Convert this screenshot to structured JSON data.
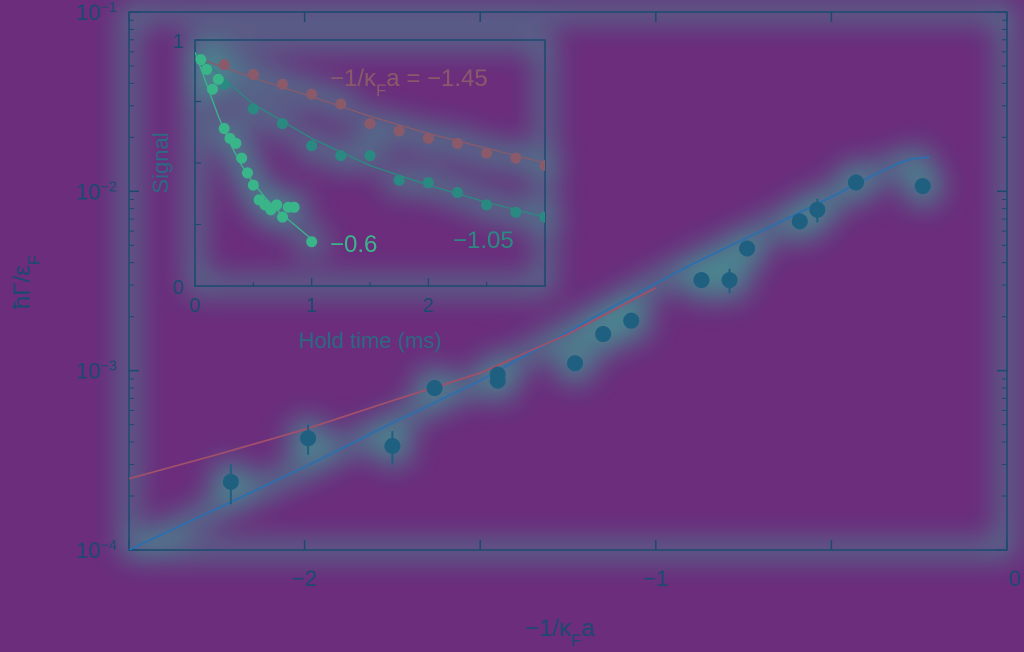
{
  "colors": {
    "background": "#6b2d7c",
    "glow": "#2fd3a0",
    "axis": "#1a4a6e",
    "blue_curve": "#2a6fb0",
    "red_curve": "#a0506a",
    "point_main": "#1f5f7f",
    "inset_brown": "#8a5a6a",
    "inset_teal": "#2a8a82",
    "inset_green": "#3ab58a"
  },
  "chart_data": [
    {
      "id": "main",
      "type": "scatter",
      "xlabel": "−1/κ_Fa",
      "xlabel_parts": {
        "pre": "−1/κ",
        "sub": "F",
        "post": "a"
      },
      "ylabel_parts": {
        "pre": "ħΓ/ε",
        "sub": "F"
      },
      "xlim": [
        -2.5,
        0
      ],
      "ylim": [
        0.0001,
        0.1
      ],
      "yscale": "log",
      "x_ticks": [
        {
          "value": -2,
          "label": "−2"
        },
        {
          "value": -1,
          "label": "−1"
        },
        {
          "value": 0,
          "label": "0"
        }
      ],
      "y_ticks": [
        {
          "value": 0.1,
          "base": "10",
          "exp": "−1"
        },
        {
          "value": 0.01,
          "base": "10",
          "exp": "−2"
        },
        {
          "value": 0.001,
          "base": "10",
          "exp": "−3"
        },
        {
          "value": 0.0001,
          "base": "10",
          "exp": "−4"
        }
      ],
      "points": [
        {
          "x": -2.21,
          "y": 0.00024,
          "err": 6e-05
        },
        {
          "x": -1.99,
          "y": 0.00042,
          "err": 8e-05
        },
        {
          "x": -1.75,
          "y": 0.00038,
          "err": 8e-05
        },
        {
          "x": -1.63,
          "y": 0.0008,
          "err": 6e-05
        },
        {
          "x": -1.45,
          "y": 0.00095,
          "err": 6e-05
        },
        {
          "x": -1.45,
          "y": 0.00088,
          "err": 5e-05
        },
        {
          "x": -1.23,
          "y": 0.0011,
          "err": 7e-05
        },
        {
          "x": -1.15,
          "y": 0.0016,
          "err": 0.0001
        },
        {
          "x": -1.07,
          "y": 0.0019,
          "err": 0.0001
        },
        {
          "x": -0.87,
          "y": 0.0032,
          "err": 0.0003
        },
        {
          "x": -0.79,
          "y": 0.0032,
          "err": 0.0005
        },
        {
          "x": -0.74,
          "y": 0.0048,
          "err": 0.0003
        },
        {
          "x": -0.59,
          "y": 0.0068,
          "err": 0.0004
        },
        {
          "x": -0.54,
          "y": 0.0079,
          "err": 0.0012
        },
        {
          "x": -0.43,
          "y": 0.0112,
          "err": 0.0008
        },
        {
          "x": -0.24,
          "y": 0.0107,
          "err": 0.001
        }
      ],
      "series": [
        {
          "color_key": "blue_curve",
          "x": [
            -2.5,
            -2.25,
            -2.0,
            -1.75,
            -1.5,
            -1.3,
            -1.1,
            -0.9,
            -0.7,
            -0.5,
            -0.38,
            -0.31,
            -0.27,
            -0.22
          ],
          "y": [
            0.0001,
            0.00017,
            0.00029,
            0.00051,
            0.00088,
            0.00145,
            0.0024,
            0.0039,
            0.006,
            0.0093,
            0.0123,
            0.0143,
            0.0152,
            0.0155
          ]
        },
        {
          "color_key": "red_curve",
          "x": [
            -2.5,
            -2.25,
            -2.0,
            -1.75,
            -1.5,
            -1.25,
            -1.0
          ],
          "y": [
            0.00025,
            0.00034,
            0.00047,
            0.00068,
            0.00097,
            0.0016,
            0.0029
          ]
        }
      ]
    },
    {
      "id": "inset",
      "type": "scatter",
      "xlabel": "Hold time (ms)",
      "ylabel": "Signal",
      "xlim": [
        0,
        3
      ],
      "ylim": [
        0,
        1
      ],
      "x_ticks": [
        {
          "value": 0,
          "label": "0"
        },
        {
          "value": 1,
          "label": "1"
        },
        {
          "value": 2,
          "label": "2"
        }
      ],
      "y_ticks": [
        {
          "value": 0,
          "label": "0"
        },
        {
          "value": 1,
          "label": "1"
        }
      ],
      "series": [
        {
          "label": "−1/κ_Fa = −1.45",
          "label_parts": {
            "pre": "−1/κ",
            "sub": "F",
            "post": "a = −1.45"
          },
          "color_key": "inset_brown",
          "points_x": [
            0.25,
            0.5,
            0.75,
            1.0,
            1.25,
            1.5,
            1.75,
            2.0,
            2.25,
            2.5,
            2.75,
            3.0
          ],
          "points_y": [
            0.9,
            0.86,
            0.82,
            0.78,
            0.74,
            0.66,
            0.63,
            0.6,
            0.58,
            0.54,
            0.52,
            0.49
          ],
          "fit_x": [
            0.0,
            0.3,
            0.6,
            1.0,
            1.5,
            2.0,
            2.5,
            3.0
          ],
          "fit_y": [
            0.93,
            0.88,
            0.83,
            0.77,
            0.69,
            0.62,
            0.56,
            0.5
          ]
        },
        {
          "label": "−1.05",
          "color_key": "inset_teal",
          "points_x": [
            0.1,
            0.25,
            0.5,
            0.75,
            1.0,
            1.25,
            1.5,
            1.75,
            2.0,
            2.25,
            2.5,
            2.75,
            3.0
          ],
          "points_y": [
            0.88,
            0.82,
            0.72,
            0.66,
            0.57,
            0.53,
            0.53,
            0.43,
            0.42,
            0.38,
            0.33,
            0.3,
            0.28
          ],
          "fit_x": [
            0.0,
            0.25,
            0.5,
            1.0,
            1.5,
            2.0,
            2.5,
            3.0
          ],
          "fit_y": [
            0.95,
            0.84,
            0.74,
            0.6,
            0.49,
            0.41,
            0.34,
            0.28
          ]
        },
        {
          "label": "−0.6",
          "color_key": "inset_green",
          "points_x": [
            0.05,
            0.1,
            0.15,
            0.2,
            0.25,
            0.3,
            0.35,
            0.4,
            0.45,
            0.5,
            0.55,
            0.6,
            0.65,
            0.7,
            0.75,
            0.8,
            0.85,
            1.0
          ],
          "points_y": [
            0.92,
            0.88,
            0.8,
            0.84,
            0.64,
            0.6,
            0.58,
            0.52,
            0.46,
            0.41,
            0.35,
            0.33,
            0.31,
            0.33,
            0.28,
            0.32,
            0.32,
            0.18
          ],
          "fit_x": [
            0.0,
            0.1,
            0.2,
            0.3,
            0.4,
            0.5,
            0.6,
            0.7,
            0.8,
            0.9,
            1.0
          ],
          "fit_y": [
            0.95,
            0.82,
            0.69,
            0.58,
            0.49,
            0.42,
            0.36,
            0.31,
            0.27,
            0.23,
            0.19
          ]
        }
      ]
    }
  ]
}
